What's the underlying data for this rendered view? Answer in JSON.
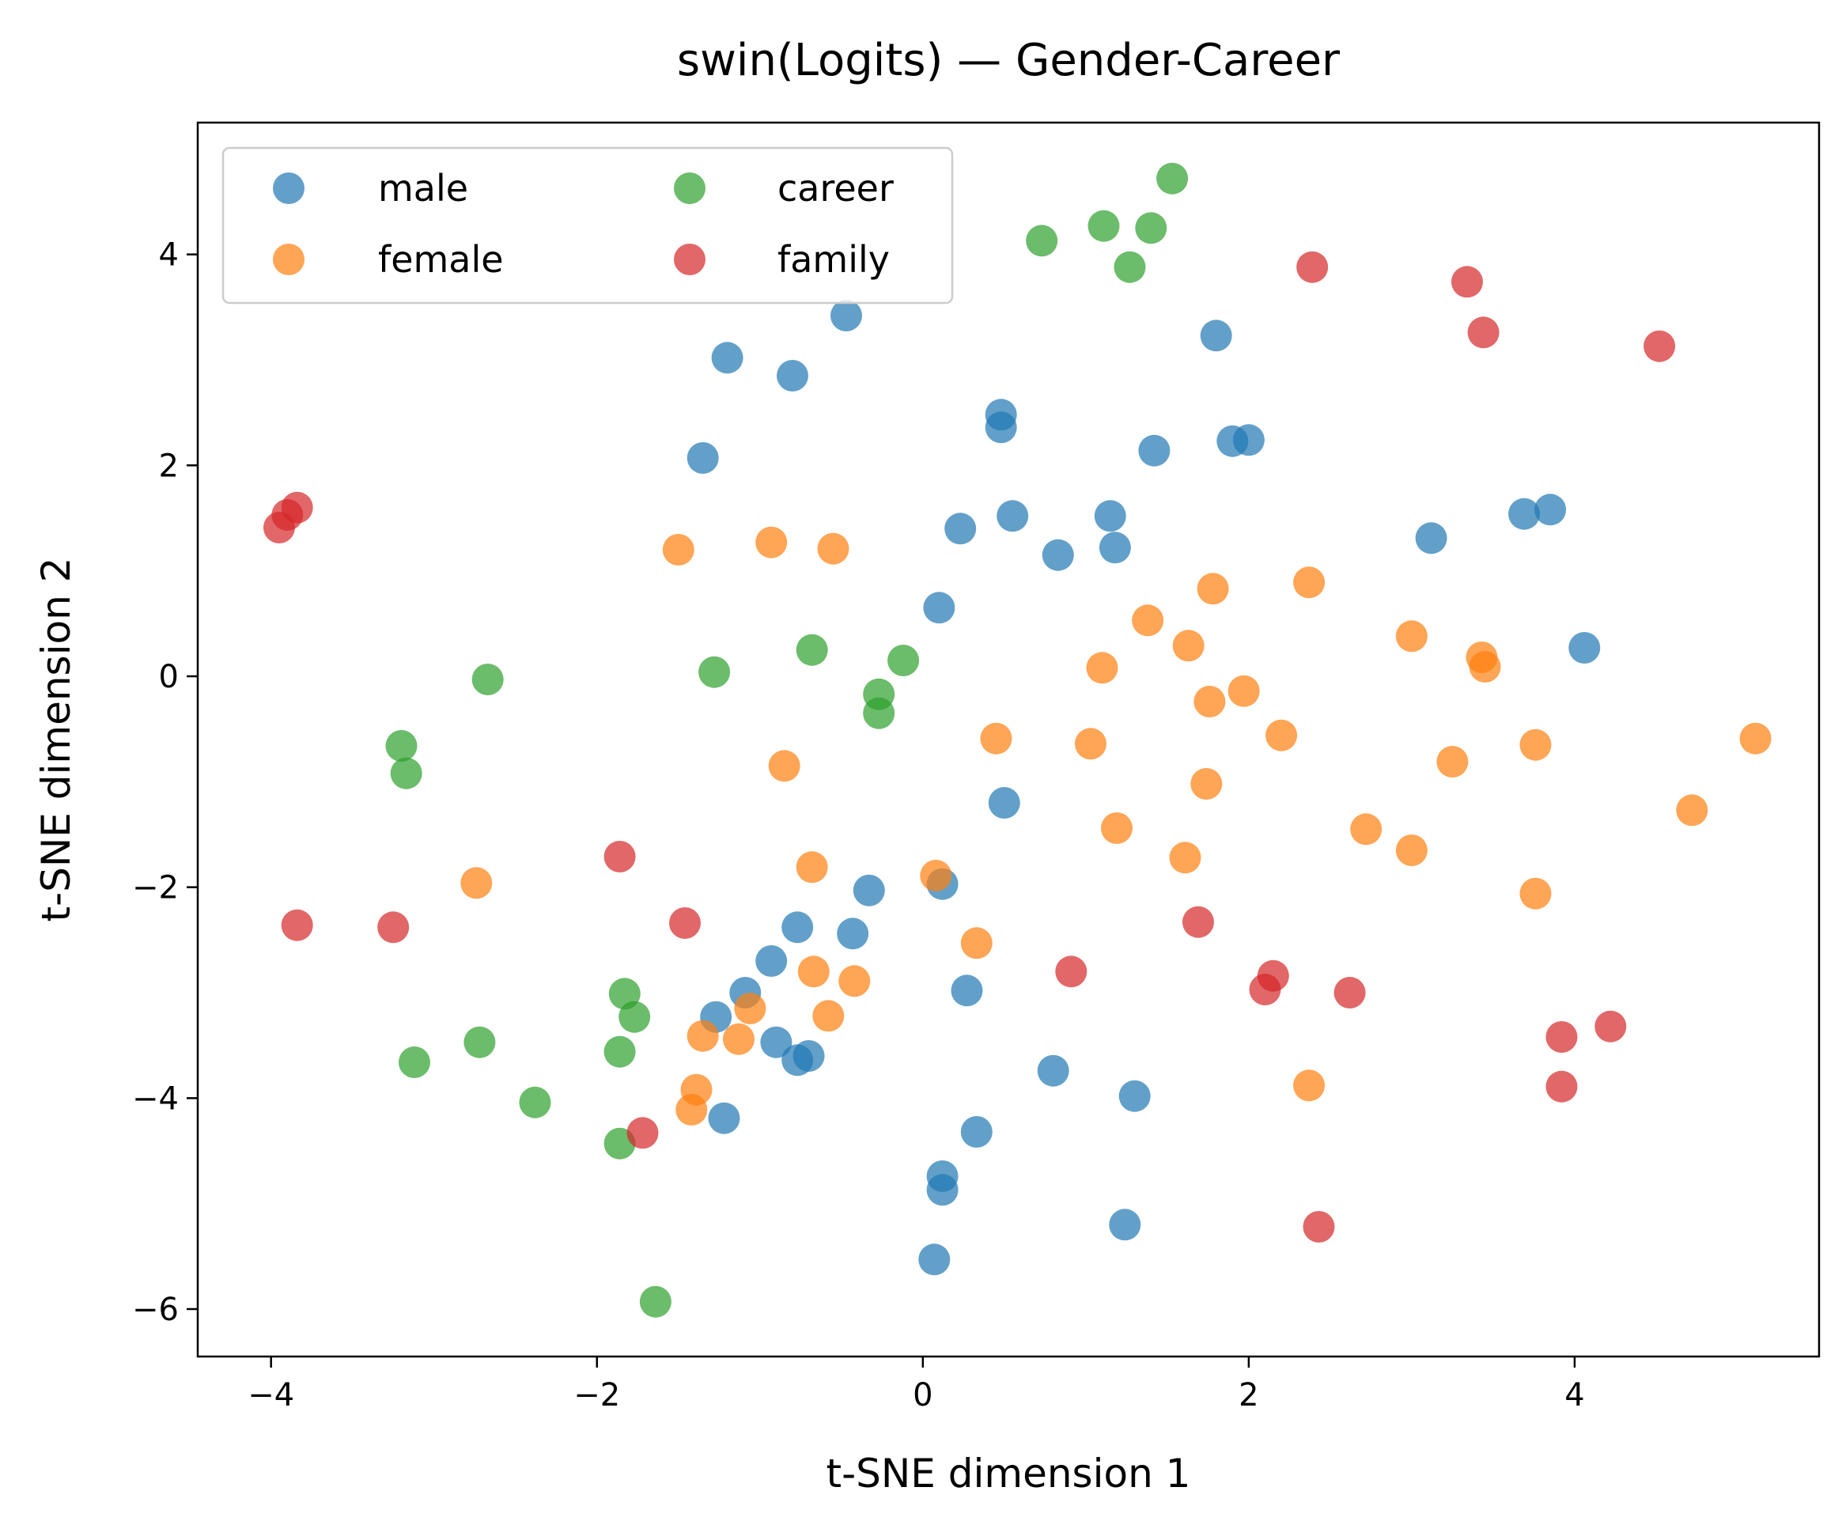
{
  "chart_data": {
    "type": "scatter",
    "title": "swin(Logits) — Gender-Career",
    "xlabel": "t-SNE dimension 1",
    "ylabel": "t-SNE dimension 2",
    "xlim": [
      -4.45,
      5.5
    ],
    "ylim": [
      -6.45,
      5.25
    ],
    "xticks": [
      -4,
      -2,
      0,
      2,
      4
    ],
    "yticks": [
      -6,
      -4,
      -2,
      0,
      2,
      4
    ],
    "xtick_labels": [
      "−4",
      "−2",
      "0",
      "2",
      "4"
    ],
    "ytick_labels": [
      "−6",
      "−4",
      "−2",
      "0",
      "2",
      "4"
    ],
    "grid": false,
    "legend": {
      "placement": "top-left",
      "columns": 2
    },
    "series": [
      {
        "name": "male",
        "color": "#1f77b4",
        "points": [
          [
            -0.47,
            3.42
          ],
          [
            -1.2,
            3.02
          ],
          [
            -0.8,
            2.85
          ],
          [
            -1.35,
            2.07
          ],
          [
            0.48,
            2.48
          ],
          [
            0.48,
            2.36
          ],
          [
            1.42,
            2.14
          ],
          [
            1.8,
            3.23
          ],
          [
            1.9,
            2.23
          ],
          [
            2.0,
            2.24
          ],
          [
            0.23,
            1.4
          ],
          [
            0.55,
            1.52
          ],
          [
            0.83,
            1.15
          ],
          [
            1.15,
            1.52
          ],
          [
            1.18,
            1.22
          ],
          [
            0.1,
            0.65
          ],
          [
            3.12,
            1.31
          ],
          [
            3.69,
            1.54
          ],
          [
            3.85,
            1.58
          ],
          [
            4.06,
            0.27
          ],
          [
            0.5,
            -1.2
          ],
          [
            -0.33,
            -2.03
          ],
          [
            0.12,
            -1.97
          ],
          [
            -0.77,
            -2.38
          ],
          [
            -0.43,
            -2.44
          ],
          [
            -0.93,
            -2.7
          ],
          [
            -1.09,
            -3.0
          ],
          [
            -1.27,
            -3.23
          ],
          [
            -0.9,
            -3.47
          ],
          [
            -0.77,
            -3.64
          ],
          [
            -0.7,
            -3.6
          ],
          [
            0.27,
            -2.98
          ],
          [
            -1.22,
            -4.19
          ],
          [
            0.8,
            -3.74
          ],
          [
            1.3,
            -3.98
          ],
          [
            0.33,
            -4.32
          ],
          [
            0.12,
            -4.74
          ],
          [
            0.12,
            -4.87
          ],
          [
            1.24,
            -5.2
          ],
          [
            0.07,
            -5.53
          ]
        ]
      },
      {
        "name": "female",
        "color": "#ff7f0e",
        "points": [
          [
            -1.5,
            1.2
          ],
          [
            -0.93,
            1.27
          ],
          [
            -0.55,
            1.21
          ],
          [
            1.78,
            0.83
          ],
          [
            2.37,
            0.89
          ],
          [
            1.38,
            0.53
          ],
          [
            1.1,
            0.08
          ],
          [
            1.63,
            0.29
          ],
          [
            1.76,
            -0.24
          ],
          [
            1.97,
            -0.14
          ],
          [
            3.0,
            0.38
          ],
          [
            3.43,
            0.18
          ],
          [
            3.45,
            0.09
          ],
          [
            0.45,
            -0.59
          ],
          [
            1.03,
            -0.64
          ],
          [
            2.2,
            -0.56
          ],
          [
            -0.85,
            -0.85
          ],
          [
            1.74,
            -1.02
          ],
          [
            3.25,
            -0.81
          ],
          [
            3.76,
            -0.65
          ],
          [
            5.11,
            -0.59
          ],
          [
            1.19,
            -1.44
          ],
          [
            2.72,
            -1.45
          ],
          [
            1.61,
            -1.72
          ],
          [
            3.0,
            -1.65
          ],
          [
            4.72,
            -1.27
          ],
          [
            3.76,
            -2.06
          ],
          [
            -2.74,
            -1.96
          ],
          [
            -0.68,
            -1.81
          ],
          [
            0.08,
            -1.89
          ],
          [
            -0.67,
            -2.8
          ],
          [
            -0.42,
            -2.89
          ],
          [
            0.33,
            -2.53
          ],
          [
            -0.58,
            -3.22
          ],
          [
            -1.06,
            -3.15
          ],
          [
            -1.35,
            -3.41
          ],
          [
            -1.13,
            -3.44
          ],
          [
            -1.39,
            -3.92
          ],
          [
            -1.42,
            -4.11
          ],
          [
            2.37,
            -3.88
          ]
        ]
      },
      {
        "name": "career",
        "color": "#2ca02c",
        "points": [
          [
            1.53,
            4.72
          ],
          [
            1.11,
            4.27
          ],
          [
            1.4,
            4.25
          ],
          [
            0.73,
            4.13
          ],
          [
            1.27,
            3.88
          ],
          [
            -0.68,
            0.25
          ],
          [
            -0.12,
            0.15
          ],
          [
            -1.28,
            0.04
          ],
          [
            -0.27,
            -0.17
          ],
          [
            -0.27,
            -0.35
          ],
          [
            -2.67,
            -0.03
          ],
          [
            -3.2,
            -0.66
          ],
          [
            -3.17,
            -0.92
          ],
          [
            -1.83,
            -3.01
          ],
          [
            -1.77,
            -3.23
          ],
          [
            -2.72,
            -3.47
          ],
          [
            -1.86,
            -3.56
          ],
          [
            -3.12,
            -3.66
          ],
          [
            -2.38,
            -4.04
          ],
          [
            -1.86,
            -4.43
          ],
          [
            -1.64,
            -5.93
          ]
        ]
      },
      {
        "name": "family",
        "color": "#d62728",
        "points": [
          [
            2.39,
            3.88
          ],
          [
            3.34,
            3.74
          ],
          [
            3.44,
            3.26
          ],
          [
            4.52,
            3.13
          ],
          [
            -3.84,
            1.6
          ],
          [
            -3.9,
            1.53
          ],
          [
            -3.95,
            1.41
          ],
          [
            -1.86,
            -1.71
          ],
          [
            -3.84,
            -2.36
          ],
          [
            -3.25,
            -2.38
          ],
          [
            -1.46,
            -2.34
          ],
          [
            1.69,
            -2.33
          ],
          [
            0.91,
            -2.8
          ],
          [
            2.15,
            -2.84
          ],
          [
            2.1,
            -2.97
          ],
          [
            2.62,
            -3.0
          ],
          [
            3.92,
            -3.42
          ],
          [
            4.22,
            -3.32
          ],
          [
            3.92,
            -3.89
          ],
          [
            -1.72,
            -4.33
          ],
          [
            2.43,
            -5.22
          ]
        ]
      }
    ]
  }
}
